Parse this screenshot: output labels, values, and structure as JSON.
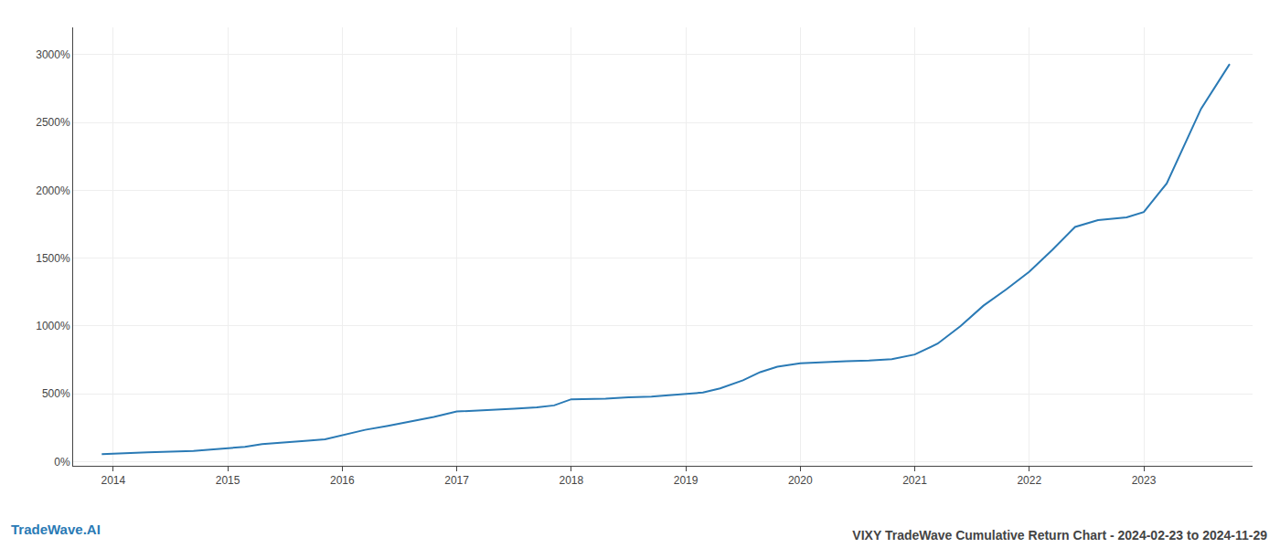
{
  "chart_data": {
    "type": "line",
    "title": "VIXY TradeWave Cumulative Return Chart - 2024-02-23 to 2024-11-29",
    "annotations": [
      "TradeWave.AI"
    ],
    "x": [
      2013.9,
      2014.0,
      2014.15,
      2014.3,
      2014.5,
      2014.7,
      2014.85,
      2015.0,
      2015.15,
      2015.3,
      2015.5,
      2015.7,
      2015.85,
      2016.0,
      2016.2,
      2016.4,
      2016.6,
      2016.8,
      2017.0,
      2017.15,
      2017.3,
      2017.5,
      2017.7,
      2017.85,
      2018.0,
      2018.15,
      2018.3,
      2018.5,
      2018.7,
      2018.85,
      2019.0,
      2019.15,
      2019.3,
      2019.5,
      2019.65,
      2019.8,
      2020.0,
      2020.1,
      2020.2,
      2020.4,
      2020.6,
      2020.8,
      2021.0,
      2021.2,
      2021.4,
      2021.6,
      2021.8,
      2022.0,
      2022.2,
      2022.4,
      2022.6,
      2022.75,
      2022.85,
      2023.0,
      2023.2,
      2023.5,
      2023.75
    ],
    "values": [
      55,
      60,
      65,
      70,
      75,
      80,
      90,
      100,
      110,
      130,
      145,
      155,
      165,
      195,
      235,
      265,
      295,
      330,
      370,
      375,
      385,
      390,
      400,
      415,
      460,
      460,
      465,
      475,
      480,
      490,
      500,
      510,
      540,
      600,
      660,
      700,
      725,
      730,
      735,
      740,
      745,
      755,
      790,
      870,
      1000,
      1150,
      1270,
      1400,
      1560,
      1730,
      1780,
      1790,
      1800,
      1840,
      2050,
      2600,
      2930
    ],
    "color": "#2a7ab5",
    "xlim": [
      2013.65,
      2023.95
    ],
    "xticks": [
      2014,
      2015,
      2016,
      2017,
      2018,
      2019,
      2020,
      2021,
      2022,
      2023
    ],
    "ylim": [
      -30,
      3200
    ],
    "yticks": [
      {
        "value": 0,
        "label": "0%"
      },
      {
        "value": 500,
        "label": "500%"
      },
      {
        "value": 1000,
        "label": "1000%"
      },
      {
        "value": 1500,
        "label": "1500%"
      },
      {
        "value": 2000,
        "label": "2000%"
      },
      {
        "value": 2500,
        "label": "2500%"
      },
      {
        "value": 3000,
        "label": "3000%"
      }
    ],
    "grid": true
  }
}
